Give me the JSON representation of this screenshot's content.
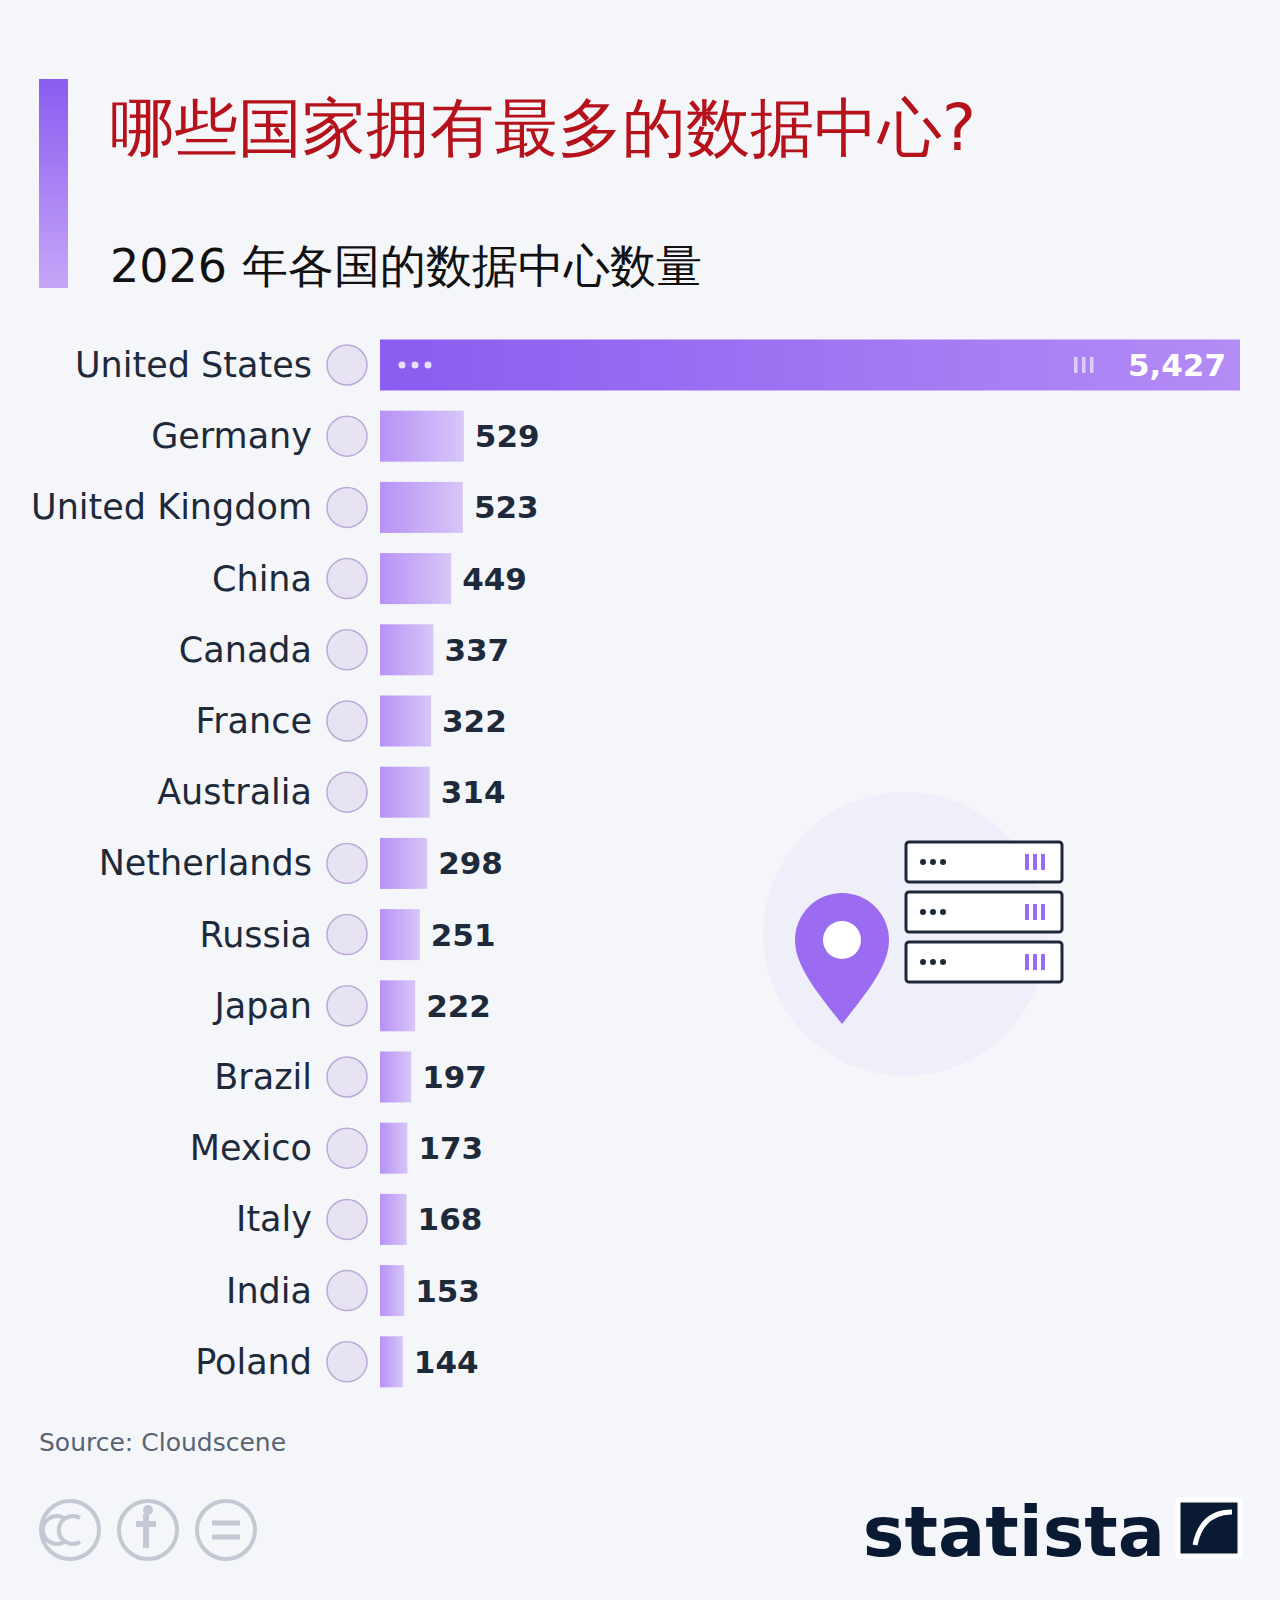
{
  "chart_data": {
    "type": "bar",
    "orientation": "horizontal",
    "title": "哪些国家拥有最多的数据中心?",
    "subtitle": "2026 年各国的数据中心数量",
    "categories": [
      "United States",
      "Germany",
      "United Kingdom",
      "China",
      "Canada",
      "France",
      "Australia",
      "Netherlands",
      "Russia",
      "Japan",
      "Brazil",
      "Mexico",
      "Italy",
      "India",
      "Poland"
    ],
    "values": [
      5427,
      529,
      523,
      449,
      337,
      322,
      314,
      298,
      251,
      222,
      197,
      173,
      168,
      153,
      144
    ],
    "value_labels": [
      "5,427",
      "529",
      "523",
      "449",
      "337",
      "322",
      "314",
      "298",
      "251",
      "222",
      "197",
      "173",
      "168",
      "153",
      "144"
    ],
    "color": "#b48cf5",
    "xlim": [
      0,
      5427
    ],
    "data_labels": true,
    "tick_labels": "y",
    "grid": false,
    "source": "Source: Cloudscene",
    "brand": "statista"
  }
}
